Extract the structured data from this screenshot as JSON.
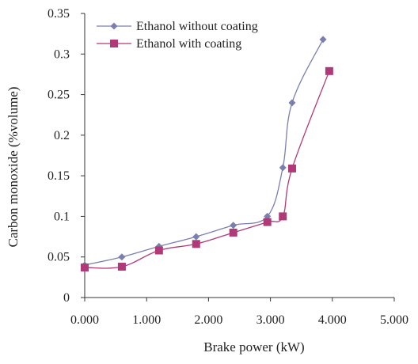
{
  "chart_data": {
    "type": "line",
    "title": "",
    "xlabel": "Brake power (kW)",
    "ylabel": "Carbon monoxide (%volume)",
    "xlim": [
      0,
      5
    ],
    "ylim": [
      0,
      0.35
    ],
    "x_ticks": [
      "0.000",
      "1.000",
      "2.000",
      "3.000",
      "4.000",
      "5.000"
    ],
    "y_ticks": [
      "0",
      "0.05",
      "0.1",
      "0.15",
      "0.2",
      "0.25",
      "0.3",
      "0.35"
    ],
    "grid": false,
    "legend_position": "top-left",
    "series": [
      {
        "name": "Ethanol without coating",
        "marker": "diamond",
        "color": "#7b7fb0",
        "x": [
          0.0,
          0.6,
          1.2,
          1.8,
          2.4,
          2.95,
          3.2,
          3.35,
          3.85
        ],
        "y": [
          0.04,
          0.05,
          0.063,
          0.075,
          0.089,
          0.1,
          0.16,
          0.24,
          0.318
        ]
      },
      {
        "name": "Ethanol with coating",
        "marker": "square",
        "color": "#b03a78",
        "x": [
          0.0,
          0.6,
          1.2,
          1.8,
          2.4,
          2.95,
          3.2,
          3.35,
          3.95
        ],
        "y": [
          0.037,
          0.038,
          0.058,
          0.066,
          0.08,
          0.093,
          0.1,
          0.159,
          0.279
        ]
      }
    ]
  }
}
